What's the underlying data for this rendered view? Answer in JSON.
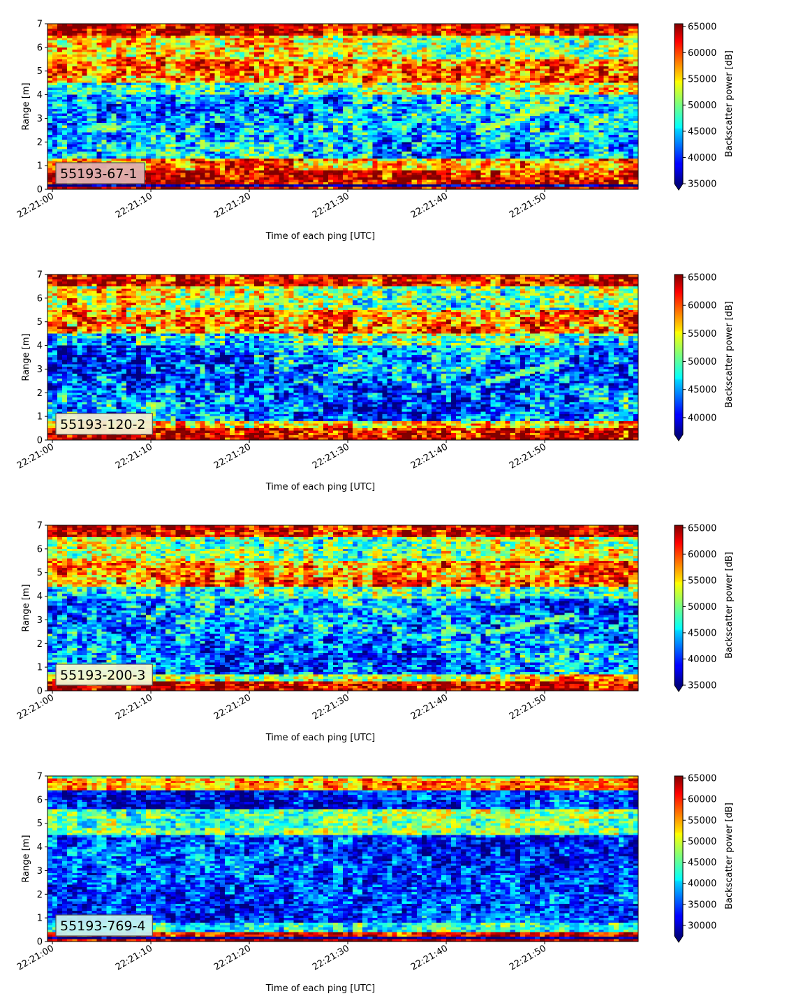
{
  "chart_data": [
    {
      "type": "heatmap",
      "label": "55193-67-1",
      "label_bg": "#dfb1b1",
      "xlabel": "Time of each ping [UTC]",
      "ylabel": "Range [m]",
      "xlim": [
        "22:20:59.5",
        "22:21:59.5"
      ],
      "ylim": [
        0,
        7
      ],
      "xticks": [
        "22:21:00",
        "22:21:10",
        "22:21:20",
        "22:21:30",
        "22:21:40",
        "22:21:50"
      ],
      "yticks": [
        0,
        1,
        2,
        3,
        4,
        5,
        6,
        7
      ],
      "colorbar": {
        "label": "Backscatter power [dB]",
        "min": 35000,
        "max": 65500,
        "extend": "min",
        "ticks": [
          35000,
          40000,
          45000,
          50000,
          55000,
          60000,
          65000
        ]
      },
      "bands": [
        {
          "range": [
            6.5,
            7.0
          ],
          "start": 62000,
          "end": 63000
        },
        {
          "range": [
            5.5,
            6.5
          ],
          "start": 54000,
          "end": 52000
        },
        {
          "range": [
            4.5,
            5.5
          ],
          "start": 57000,
          "end": 60000
        },
        {
          "range": [
            4.0,
            4.5
          ],
          "start": 48000,
          "end": 52000
        },
        {
          "range": [
            1.3,
            4.0
          ],
          "start": 44000,
          "end": 45000
        },
        {
          "range": [
            0.8,
            1.3
          ],
          "start": 56000,
          "end": 58000
        },
        {
          "range": [
            0.2,
            0.8
          ],
          "start": 63000,
          "end": 63000
        }
      ],
      "features": [
        {
          "name": "rising echo",
          "t0": "22:21:43",
          "t1": "22:21:52",
          "range0": 2.4,
          "range1": 3.6,
          "value": 52000
        }
      ]
    },
    {
      "type": "heatmap",
      "label": "55193-120-2",
      "label_bg": "#f3efd1",
      "xlabel": "Time of each ping [UTC]",
      "ylabel": "Range [m]",
      "xlim": [
        "22:20:59.5",
        "22:21:59.5"
      ],
      "ylim": [
        0,
        7
      ],
      "xticks": [
        "22:21:00",
        "22:21:10",
        "22:21:20",
        "22:21:30",
        "22:21:40",
        "22:21:50"
      ],
      "yticks": [
        0,
        1,
        2,
        3,
        4,
        5,
        6,
        7
      ],
      "colorbar": {
        "label": "Backscatter power [dB]",
        "min": 37000,
        "max": 65500,
        "extend": "min",
        "ticks": [
          40000,
          45000,
          50000,
          55000,
          60000,
          65000
        ]
      },
      "bands": [
        {
          "range": [
            6.5,
            7.0
          ],
          "start": 62000,
          "end": 63000
        },
        {
          "range": [
            5.5,
            6.5
          ],
          "start": 53000,
          "end": 51000
        },
        {
          "range": [
            4.5,
            5.5
          ],
          "start": 57000,
          "end": 60000
        },
        {
          "range": [
            4.0,
            4.5
          ],
          "start": 47000,
          "end": 51000
        },
        {
          "range": [
            0.8,
            4.0
          ],
          "start": 43000,
          "end": 44000
        },
        {
          "range": [
            0.5,
            0.8
          ],
          "start": 55000,
          "end": 56000
        },
        {
          "range": [
            0.1,
            0.5
          ],
          "start": 63000,
          "end": 63000
        }
      ],
      "features": [
        {
          "name": "rising echo",
          "t0": "22:21:44",
          "t1": "22:21:52",
          "range0": 2.4,
          "range1": 3.3,
          "value": 51000
        }
      ]
    },
    {
      "type": "heatmap",
      "label": "55193-200-3",
      "label_bg": "#f4f7d2",
      "xlabel": "Time of each ping [UTC]",
      "ylabel": "Range [m]",
      "xlim": [
        "22:20:59.5",
        "22:21:59.5"
      ],
      "ylim": [
        0,
        7
      ],
      "xticks": [
        "22:21:00",
        "22:21:10",
        "22:21:20",
        "22:21:30",
        "22:21:40",
        "22:21:50"
      ],
      "yticks": [
        0,
        1,
        2,
        3,
        4,
        5,
        6,
        7
      ],
      "colorbar": {
        "label": "Backscatter power [dB]",
        "min": 35000,
        "max": 65500,
        "extend": "min",
        "ticks": [
          35000,
          40000,
          45000,
          50000,
          55000,
          60000,
          65000
        ]
      },
      "bands": [
        {
          "range": [
            6.5,
            7.0
          ],
          "start": 62000,
          "end": 63000
        },
        {
          "range": [
            5.5,
            6.5
          ],
          "start": 52000,
          "end": 51000
        },
        {
          "range": [
            4.4,
            5.5
          ],
          "start": 56000,
          "end": 59000
        },
        {
          "range": [
            3.9,
            4.4
          ],
          "start": 46000,
          "end": 50000
        },
        {
          "range": [
            0.7,
            3.9
          ],
          "start": 43000,
          "end": 43000
        },
        {
          "range": [
            0.4,
            0.7
          ],
          "start": 52000,
          "end": 54000
        },
        {
          "range": [
            0.1,
            0.4
          ],
          "start": 63000,
          "end": 63000
        }
      ],
      "features": [
        {
          "name": "rising echo",
          "t0": "22:21:44",
          "t1": "22:21:53",
          "range0": 2.4,
          "range1": 3.2,
          "value": 50000
        }
      ]
    },
    {
      "type": "heatmap",
      "label": "55193-769-4",
      "label_bg": "#c2f0f0",
      "xlabel": "Time of each ping [UTC]",
      "ylabel": "Range [m]",
      "xlim": [
        "22:20:59.5",
        "22:21:59.5"
      ],
      "ylim": [
        0,
        7
      ],
      "xticks": [
        "22:21:00",
        "22:21:10",
        "22:21:20",
        "22:21:30",
        "22:21:40",
        "22:21:50"
      ],
      "yticks": [
        0,
        1,
        2,
        3,
        4,
        5,
        6,
        7
      ],
      "colorbar": {
        "label": "Backscatter power [dB]",
        "min": 27500,
        "max": 65500,
        "extend": "min",
        "ticks": [
          30000,
          35000,
          40000,
          45000,
          50000,
          55000,
          60000,
          65000
        ]
      },
      "bands": [
        {
          "range": [
            6.9,
            7.0
          ],
          "start": 45000,
          "end": 45000
        },
        {
          "range": [
            6.4,
            6.9
          ],
          "start": 55000,
          "end": 55000
        },
        {
          "range": [
            5.6,
            6.4
          ],
          "start": 33000,
          "end": 33000
        },
        {
          "range": [
            4.5,
            5.6
          ],
          "start": 45000,
          "end": 47000
        },
        {
          "range": [
            0.8,
            4.5
          ],
          "start": 35000,
          "end": 34000
        },
        {
          "range": [
            0.4,
            0.8
          ],
          "start": 43000,
          "end": 43000
        },
        {
          "range": [
            0.2,
            0.4
          ],
          "start": 60000,
          "end": 60000
        }
      ],
      "features": []
    }
  ]
}
